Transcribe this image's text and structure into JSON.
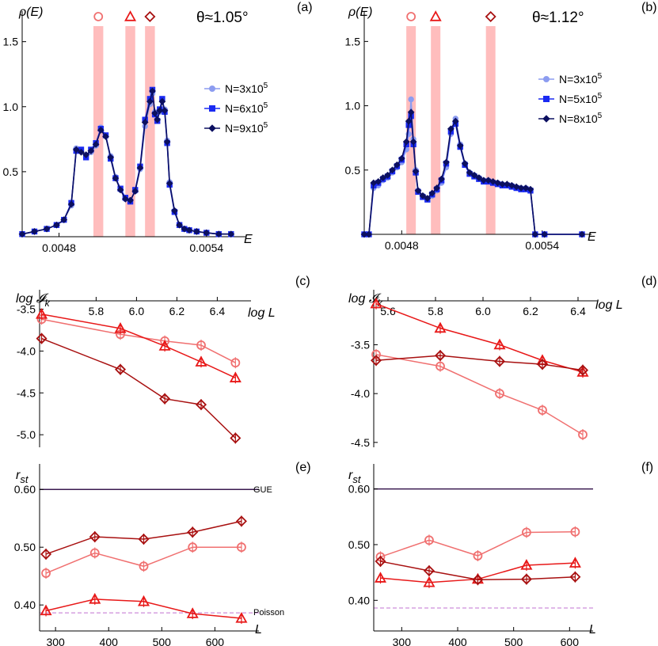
{
  "chart_data": [
    {
      "panel": "(a)",
      "type": "line",
      "title": "θ≈1.05°",
      "ylabel": "ρ(E)",
      "xlabel": "E",
      "xlim": [
        0.00465,
        0.00552
      ],
      "ylim": [
        0,
        1.65
      ],
      "xticks": [
        0.0048,
        0.0054
      ],
      "xtick_labels": [
        "0.0048",
        "0.0054"
      ],
      "yticks": [
        0.5,
        1.0,
        1.5
      ],
      "ytick_labels": [
        "0.5",
        "1.0",
        "1.5"
      ],
      "bands": [
        {
          "x0": 0.00494,
          "x1": 0.00498,
          "marker": "circle",
          "color": "#f07070"
        },
        {
          "x0": 0.00507,
          "x1": 0.00511,
          "marker": "triangle",
          "color": "#e81818"
        },
        {
          "x0": 0.00515,
          "x1": 0.00519,
          "marker": "diamond",
          "color": "#a81010"
        }
      ],
      "series": [
        {
          "name": "N=3x10",
          "exp": "5",
          "color": "#8c9cf0",
          "marker": "circle",
          "x": [
            0.00465,
            0.0047,
            0.00475,
            0.00479,
            0.00482,
            0.00485,
            0.00487,
            0.00489,
            0.00491,
            0.00493,
            0.00495,
            0.00497,
            0.00499,
            0.00501,
            0.00503,
            0.00505,
            0.00507,
            0.00509,
            0.00511,
            0.00513,
            0.00515,
            0.00517,
            0.00518,
            0.00519,
            0.0052,
            0.00521,
            0.00522,
            0.00523,
            0.00524,
            0.00525,
            0.00527,
            0.00529,
            0.00531,
            0.00533,
            0.00536,
            0.0054,
            0.00545,
            0.0055
          ],
          "y": [
            0.02,
            0.04,
            0.06,
            0.09,
            0.13,
            0.24,
            0.68,
            0.66,
            0.62,
            0.65,
            0.7,
            0.84,
            0.78,
            0.62,
            0.46,
            0.36,
            0.29,
            0.28,
            0.35,
            0.52,
            0.85,
            1.02,
            1.1,
            0.96,
            0.9,
            0.96,
            1.05,
            0.98,
            0.74,
            0.42,
            0.2,
            0.09,
            0.06,
            0.05,
            0.04,
            0.03,
            0.02,
            0.02
          ]
        },
        {
          "name": "N=6x10",
          "exp": "5",
          "color": "#1a2af2",
          "marker": "square",
          "x": [
            0.00465,
            0.0047,
            0.00475,
            0.00479,
            0.00482,
            0.00485,
            0.00487,
            0.00489,
            0.00491,
            0.00493,
            0.00495,
            0.00497,
            0.00499,
            0.00501,
            0.00503,
            0.00505,
            0.00507,
            0.00509,
            0.00511,
            0.00513,
            0.00515,
            0.00517,
            0.00518,
            0.00519,
            0.0052,
            0.00521,
            0.00522,
            0.00523,
            0.00524,
            0.00525,
            0.00527,
            0.00529,
            0.00531,
            0.00533,
            0.00536,
            0.0054,
            0.00545,
            0.0055
          ],
          "y": [
            0.02,
            0.04,
            0.06,
            0.09,
            0.13,
            0.26,
            0.66,
            0.67,
            0.61,
            0.67,
            0.72,
            0.83,
            0.78,
            0.6,
            0.45,
            0.37,
            0.3,
            0.27,
            0.36,
            0.54,
            0.9,
            1.06,
            1.13,
            0.94,
            0.89,
            0.98,
            1.06,
            0.96,
            0.72,
            0.4,
            0.19,
            0.09,
            0.06,
            0.05,
            0.04,
            0.03,
            0.02,
            0.02
          ]
        },
        {
          "name": "N=9x10",
          "exp": "5",
          "color": "#0c1060",
          "marker": "diamond",
          "x": [
            0.00465,
            0.0047,
            0.00475,
            0.00479,
            0.00482,
            0.00485,
            0.00487,
            0.00489,
            0.00491,
            0.00493,
            0.00495,
            0.00497,
            0.00499,
            0.00501,
            0.00503,
            0.00505,
            0.00507,
            0.00509,
            0.00511,
            0.00513,
            0.00515,
            0.00517,
            0.00518,
            0.00519,
            0.0052,
            0.00521,
            0.00522,
            0.00523,
            0.00524,
            0.00525,
            0.00527,
            0.00529,
            0.00531,
            0.00533,
            0.00536,
            0.0054,
            0.00545,
            0.0055
          ],
          "y": [
            0.02,
            0.04,
            0.06,
            0.09,
            0.13,
            0.25,
            0.67,
            0.65,
            0.63,
            0.66,
            0.71,
            0.82,
            0.77,
            0.61,
            0.45,
            0.36,
            0.29,
            0.28,
            0.35,
            0.53,
            0.88,
            1.04,
            1.12,
            0.95,
            0.9,
            0.97,
            1.04,
            0.97,
            0.73,
            0.41,
            0.2,
            0.09,
            0.06,
            0.05,
            0.04,
            0.03,
            0.02,
            0.02
          ]
        }
      ]
    },
    {
      "panel": "(b)",
      "type": "line",
      "title": "θ≈1.12°",
      "ylabel": "ρ(E)",
      "xlabel": "E",
      "xlim": [
        0.00464,
        0.00557
      ],
      "ylim": [
        0,
        1.65
      ],
      "xticks": [
        0.0048,
        0.0054
      ],
      "xtick_labels": [
        "0.0048",
        "0.0054"
      ],
      "yticks": [
        0.5,
        1.0,
        1.5
      ],
      "ytick_labels": [
        "0.5",
        "1.0",
        "1.5"
      ],
      "bands": [
        {
          "x0": 0.004835,
          "x1": 0.004845,
          "marker": "circle",
          "color": "#f07070"
        },
        {
          "x0": 0.00494,
          "x1": 0.00495,
          "marker": "triangle",
          "color": "#e81818"
        },
        {
          "x0": 0.00517,
          "x1": 0.00519,
          "marker": "diamond",
          "color": "#a81010"
        }
      ],
      "series": [
        {
          "name": "N=3x10",
          "exp": "5",
          "color": "#8c9cf0",
          "marker": "circle",
          "x": [
            0.00464,
            0.00466,
            0.00468,
            0.0047,
            0.00472,
            0.00474,
            0.00476,
            0.00478,
            0.0048,
            0.00482,
            0.00483,
            0.00484,
            0.00485,
            0.00486,
            0.00487,
            0.00489,
            0.00491,
            0.00493,
            0.00495,
            0.00497,
            0.00499,
            0.00501,
            0.00503,
            0.00505,
            0.00507,
            0.00509,
            0.00511,
            0.00513,
            0.00515,
            0.00517,
            0.00519,
            0.00521,
            0.00523,
            0.00525,
            0.00527,
            0.00529,
            0.00531,
            0.00533,
            0.00535,
            0.00537,
            0.00541,
            0.00557
          ],
          "y": [
            0.0,
            0.0,
            0.36,
            0.38,
            0.42,
            0.44,
            0.48,
            0.52,
            0.56,
            0.66,
            0.78,
            1.05,
            0.74,
            0.5,
            0.34,
            0.3,
            0.28,
            0.3,
            0.34,
            0.4,
            0.52,
            0.78,
            0.9,
            0.7,
            0.55,
            0.48,
            0.46,
            0.44,
            0.42,
            0.42,
            0.4,
            0.4,
            0.39,
            0.38,
            0.38,
            0.36,
            0.36,
            0.36,
            0.34,
            0.0,
            0.0,
            0.0
          ]
        },
        {
          "name": "N=5x10",
          "exp": "5",
          "color": "#1a2af2",
          "marker": "square",
          "x": [
            0.00464,
            0.00466,
            0.00468,
            0.0047,
            0.00472,
            0.00474,
            0.00476,
            0.00478,
            0.0048,
            0.00482,
            0.00483,
            0.00484,
            0.00485,
            0.00486,
            0.00487,
            0.00489,
            0.00491,
            0.00493,
            0.00495,
            0.00497,
            0.00499,
            0.00501,
            0.00503,
            0.00505,
            0.00507,
            0.00509,
            0.00511,
            0.00513,
            0.00515,
            0.00517,
            0.00519,
            0.00521,
            0.00523,
            0.00525,
            0.00527,
            0.00529,
            0.00531,
            0.00533,
            0.00535,
            0.00537,
            0.00541,
            0.00557
          ],
          "y": [
            0.0,
            0.0,
            0.38,
            0.4,
            0.43,
            0.45,
            0.49,
            0.53,
            0.58,
            0.7,
            0.85,
            0.92,
            0.7,
            0.48,
            0.33,
            0.29,
            0.27,
            0.31,
            0.35,
            0.42,
            0.55,
            0.8,
            0.86,
            0.68,
            0.54,
            0.47,
            0.45,
            0.43,
            0.41,
            0.41,
            0.4,
            0.39,
            0.38,
            0.38,
            0.37,
            0.36,
            0.35,
            0.35,
            0.34,
            0.0,
            0.0,
            0.0
          ]
        },
        {
          "name": "N=8x10",
          "exp": "5",
          "color": "#0c1060",
          "marker": "diamond",
          "x": [
            0.00464,
            0.00466,
            0.00468,
            0.0047,
            0.00472,
            0.00474,
            0.00476,
            0.00478,
            0.0048,
            0.00482,
            0.00483,
            0.00484,
            0.00485,
            0.00486,
            0.00487,
            0.00489,
            0.00491,
            0.00493,
            0.00495,
            0.00497,
            0.00499,
            0.00501,
            0.00503,
            0.00505,
            0.00507,
            0.00509,
            0.00511,
            0.00513,
            0.00515,
            0.00517,
            0.00519,
            0.00521,
            0.00523,
            0.00525,
            0.00527,
            0.00529,
            0.00531,
            0.00533,
            0.00535,
            0.00537,
            0.00541,
            0.00557
          ],
          "y": [
            0.0,
            0.0,
            0.4,
            0.41,
            0.44,
            0.46,
            0.5,
            0.54,
            0.59,
            0.72,
            0.88,
            0.95,
            0.72,
            0.49,
            0.34,
            0.3,
            0.28,
            0.32,
            0.36,
            0.43,
            0.56,
            0.82,
            0.88,
            0.69,
            0.55,
            0.48,
            0.46,
            0.44,
            0.42,
            0.42,
            0.41,
            0.4,
            0.39,
            0.39,
            0.38,
            0.37,
            0.36,
            0.36,
            0.35,
            0.0,
            0.0,
            0.0
          ]
        }
      ]
    },
    {
      "panel": "(c)",
      "type": "line",
      "ylabel": "log",
      "ylabel_sym": "𝓘",
      "ylabel_sub": "k",
      "xlabel": "log L",
      "xlim": [
        5.52,
        6.52
      ],
      "ylim": [
        -5.15,
        -3.4
      ],
      "xticks": [
        5.8,
        6.0,
        6.2,
        6.4
      ],
      "xtick_labels": [
        "5.8",
        "6.0",
        "6.2",
        "6.4"
      ],
      "yticks": [
        -3.5,
        -4.0,
        -4.5,
        -5.0
      ],
      "ytick_labels": [
        "-3.5",
        "-4.0",
        "-4.5",
        "-5.0"
      ],
      "series": [
        {
          "marker": "circle",
          "color": "#f07070",
          "x": [
            5.53,
            5.92,
            6.14,
            6.32,
            6.49
          ],
          "y": [
            -3.62,
            -3.8,
            -3.88,
            -3.93,
            -4.14
          ]
        },
        {
          "marker": "triangle",
          "color": "#e81818",
          "x": [
            5.53,
            5.92,
            6.14,
            6.32,
            6.49
          ],
          "y": [
            -3.56,
            -3.73,
            -3.94,
            -4.13,
            -4.32
          ]
        },
        {
          "marker": "diamond",
          "color": "#a81010",
          "x": [
            5.53,
            5.92,
            6.14,
            6.32,
            6.49
          ],
          "y": [
            -3.85,
            -4.22,
            -4.57,
            -4.64,
            -5.04
          ]
        }
      ]
    },
    {
      "panel": "(d)",
      "type": "line",
      "ylabel": "log",
      "ylabel_sym": "𝓘",
      "ylabel_sub": "k",
      "xlabel": "log L",
      "xlim": [
        5.54,
        6.44
      ],
      "ylim": [
        -4.55,
        -3.05
      ],
      "xticks": [
        5.6,
        5.8,
        6.0,
        6.2,
        6.4
      ],
      "xtick_labels": [
        "5.6",
        "5.8",
        "6.0",
        "6.2",
        "6.4"
      ],
      "yticks": [
        -3.5,
        -4.0,
        -4.5
      ],
      "ytick_labels": [
        "-3.5",
        "-4.0",
        "-4.5"
      ],
      "series": [
        {
          "marker": "circle",
          "color": "#f07070",
          "x": [
            5.55,
            5.82,
            6.07,
            6.25,
            6.42
          ],
          "y": [
            -3.6,
            -3.72,
            -4.0,
            -4.17,
            -4.42
          ]
        },
        {
          "marker": "triangle",
          "color": "#e81818",
          "x": [
            5.55,
            5.82,
            6.07,
            6.25,
            6.42
          ],
          "y": [
            -3.08,
            -3.33,
            -3.5,
            -3.66,
            -3.78
          ]
        },
        {
          "marker": "diamond",
          "color": "#a81010",
          "x": [
            5.55,
            5.82,
            6.07,
            6.25,
            6.42
          ],
          "y": [
            -3.66,
            -3.61,
            -3.67,
            -3.7,
            -3.76
          ]
        }
      ]
    },
    {
      "panel": "(e)",
      "type": "line",
      "ylabel": "r",
      "ylabel_sub": "st",
      "xlabel": "L",
      "xlim": [
        270,
        665
      ],
      "ylim": [
        0.355,
        0.625
      ],
      "xticks": [
        300,
        400,
        500,
        600
      ],
      "xtick_labels": [
        "300",
        "400",
        "500",
        "600"
      ],
      "yticks": [
        0.4,
        0.5,
        0.6
      ],
      "ytick_labels": [
        "0.40",
        "0.50",
        "0.60"
      ],
      "reference_lines": [
        {
          "label": "GUE",
          "y": 0.6,
          "color": "#3a1a50",
          "dashed": false
        },
        {
          "label": "Poisson",
          "y": 0.3863,
          "color": "#c070d0",
          "dashed": true
        }
      ],
      "series": [
        {
          "marker": "circle",
          "color": "#f07070",
          "x": [
            282,
            374,
            466,
            558,
            650
          ],
          "y": [
            0.455,
            0.49,
            0.467,
            0.5,
            0.5
          ]
        },
        {
          "marker": "triangle",
          "color": "#e81818",
          "x": [
            282,
            374,
            466,
            558,
            650
          ],
          "y": [
            0.39,
            0.41,
            0.406,
            0.385,
            0.377
          ]
        },
        {
          "marker": "diamond",
          "color": "#a81010",
          "x": [
            282,
            374,
            466,
            558,
            650
          ],
          "y": [
            0.488,
            0.518,
            0.514,
            0.526,
            0.545
          ]
        }
      ]
    },
    {
      "panel": "(f)",
      "type": "line",
      "ylabel": "r",
      "ylabel_sub": "st",
      "xlabel": "L",
      "xlim": [
        250,
        625
      ],
      "ylim": [
        0.345,
        0.625
      ],
      "xticks": [
        300,
        400,
        500,
        600
      ],
      "xtick_labels": [
        "300",
        "400",
        "500",
        "600"
      ],
      "yticks": [
        0.4,
        0.5,
        0.6
      ],
      "ytick_labels": [
        "0.40",
        "0.50",
        "0.60"
      ],
      "reference_lines": [
        {
          "label": "",
          "y": 0.6,
          "color": "#3a1a50",
          "dashed": false
        },
        {
          "label": "",
          "y": 0.3863,
          "color": "#c070d0",
          "dashed": true
        }
      ],
      "series": [
        {
          "marker": "circle",
          "color": "#f07070",
          "x": [
            262,
            349,
            436,
            523,
            610
          ],
          "y": [
            0.478,
            0.508,
            0.48,
            0.522,
            0.523
          ]
        },
        {
          "marker": "triangle",
          "color": "#e81818",
          "x": [
            262,
            349,
            436,
            523,
            610
          ],
          "y": [
            0.44,
            0.432,
            0.438,
            0.463,
            0.467
          ]
        },
        {
          "marker": "diamond",
          "color": "#a81010",
          "x": [
            262,
            349,
            436,
            523,
            610
          ],
          "y": [
            0.47,
            0.453,
            0.437,
            0.438,
            0.442
          ]
        }
      ]
    }
  ]
}
